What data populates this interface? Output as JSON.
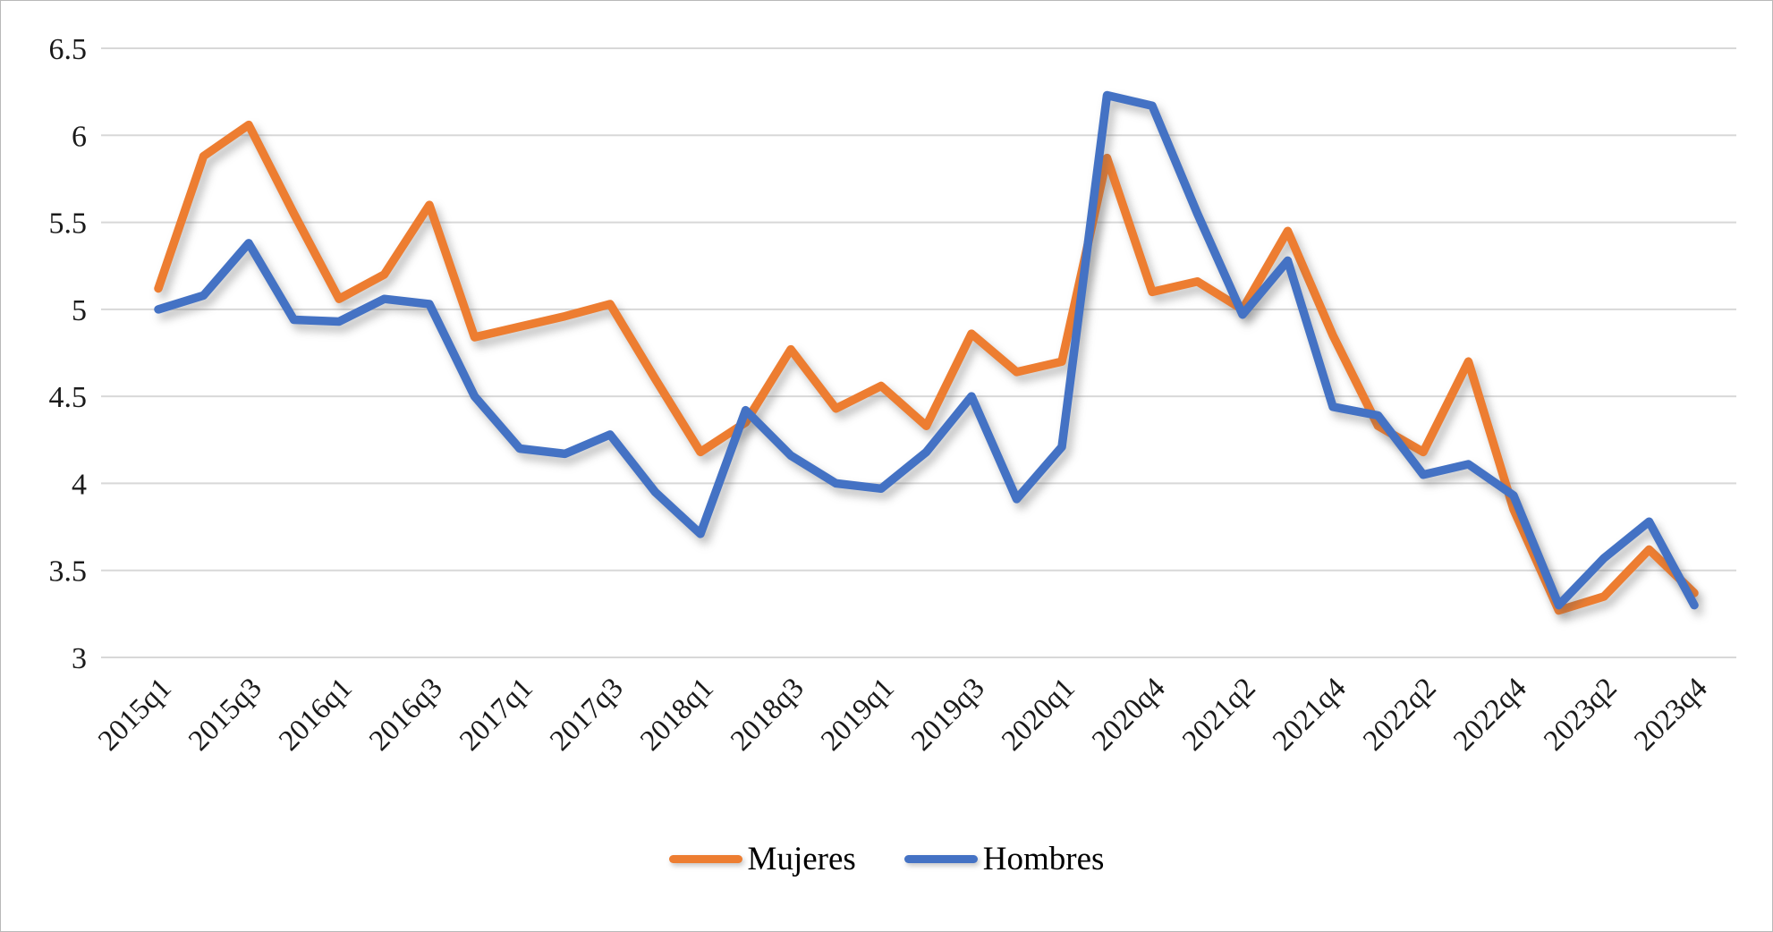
{
  "chart_data": {
    "type": "line",
    "title": "",
    "xlabel": "",
    "ylabel": "",
    "ylim": [
      3,
      6.5
    ],
    "y_ticks": [
      6.5,
      6,
      5.5,
      5,
      4.5,
      4,
      3.5,
      3
    ],
    "grid": "horizontal",
    "legend_position": "bottom-center",
    "categories": [
      "2015q1",
      "2015q2",
      "2015q3",
      "2015q4",
      "2016q1",
      "2016q2",
      "2016q3",
      "2016q4",
      "2017q1",
      "2017q2",
      "2017q3",
      "2017q4",
      "2018q1",
      "2018q2",
      "2018q3",
      "2018q4",
      "2019q1",
      "2019q2",
      "2019q3",
      "2019q4",
      "2020q1",
      "2020q3",
      "2020q4",
      "2021q1",
      "2021q2",
      "2021q3",
      "2021q4",
      "2022q1",
      "2022q2",
      "2022q3",
      "2022q4",
      "2023q1",
      "2023q2",
      "2023q3",
      "2023q4"
    ],
    "x_tick_label_indices": [
      0,
      2,
      4,
      6,
      8,
      10,
      12,
      14,
      16,
      18,
      20,
      22,
      24,
      26,
      28,
      30,
      32,
      34
    ],
    "x_tick_labels": [
      "2015q1",
      "2015q3",
      "2016q1",
      "2016q3",
      "2017q1",
      "2017q3",
      "2018q1",
      "2018q3",
      "2019q1",
      "2019q3",
      "2020q1",
      "2020q4",
      "2021q2",
      "2021q4",
      "2022q2",
      "2022q4",
      "2023q2",
      "2023q4"
    ],
    "series": [
      {
        "name": "Mujeres",
        "color": "#ED7D31",
        "values": [
          5.12,
          5.88,
          6.06,
          5.55,
          5.06,
          5.2,
          5.6,
          4.84,
          4.9,
          4.96,
          5.03,
          4.6,
          4.18,
          4.35,
          4.77,
          4.43,
          4.56,
          4.33,
          4.86,
          4.64,
          4.7,
          5.87,
          5.1,
          5.16,
          5.0,
          5.45,
          4.85,
          4.33,
          4.18,
          4.7,
          3.85,
          3.27,
          3.35,
          3.62,
          3.37
        ]
      },
      {
        "name": "Hombres",
        "color": "#4472C4",
        "values": [
          5.0,
          5.08,
          5.38,
          4.94,
          4.93,
          5.06,
          5.03,
          4.5,
          4.2,
          4.17,
          4.28,
          3.95,
          3.71,
          4.42,
          4.16,
          4.0,
          3.97,
          4.18,
          4.5,
          3.91,
          4.21,
          6.23,
          6.17,
          5.55,
          4.97,
          5.28,
          4.44,
          4.39,
          4.05,
          4.11,
          3.93,
          3.3,
          3.57,
          3.78,
          3.3
        ]
      }
    ]
  },
  "legend": {
    "mujeres_label": "Mujeres",
    "hombres_label": "Hombres"
  }
}
